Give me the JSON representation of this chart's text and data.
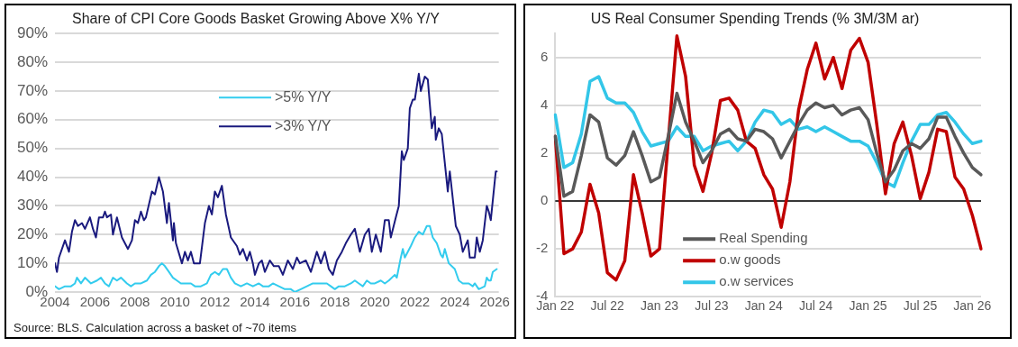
{
  "chart_data": [
    {
      "type": "line",
      "title": "Share of CPI Core Goods Basket Growing Above X% Y/Y",
      "xlim": [
        2004,
        2026.2
      ],
      "xticks": [
        2004,
        2006,
        2008,
        2010,
        2012,
        2014,
        2016,
        2018,
        2020,
        2022,
        2024,
        2026
      ],
      "ylim": [
        0,
        90
      ],
      "yticks": [
        {
          "value": 0,
          "label": "0%"
        },
        {
          "value": 10,
          "label": "10%"
        },
        {
          "value": 20,
          "label": "20%"
        },
        {
          "value": 30,
          "label": "30%"
        },
        {
          "value": 40,
          "label": "40%"
        },
        {
          "value": 50,
          "label": "50%"
        },
        {
          "value": 60,
          "label": "60%"
        },
        {
          "value": 70,
          "label": "70%"
        },
        {
          "value": 80,
          "label": "80%"
        },
        {
          "value": 90,
          "label": "90%"
        }
      ],
      "grid": "y",
      "legend": "top",
      "marker": "none",
      "line_style": "solid",
      "annotations": [
        "Source: BLS. Calculation across a basket of ~70 items"
      ],
      "series": [
        {
          "name": ">5% Y/Y",
          "color": "#33ccee",
          "x": [
            2004.0,
            2004.2,
            2004.5,
            2004.8,
            2005.0,
            2005.1,
            2005.3,
            2005.5,
            2005.8,
            2006.1,
            2006.3,
            2006.5,
            2006.7,
            2006.9,
            2007.1,
            2007.3,
            2007.6,
            2007.8,
            2008.0,
            2008.3,
            2008.6,
            2008.8,
            2009.0,
            2009.2,
            2009.35,
            2009.5,
            2009.7,
            2009.9,
            2010.1,
            2010.3,
            2010.5,
            2010.8,
            2011.0,
            2011.3,
            2011.6,
            2011.8,
            2012.0,
            2012.2,
            2012.4,
            2012.6,
            2012.8,
            2013.0,
            2013.3,
            2013.6,
            2013.9,
            2014.2,
            2014.4,
            2014.7,
            2014.9,
            2015.2,
            2015.5,
            2015.8,
            2016.0,
            2016.3,
            2016.6,
            2016.9,
            2017.2,
            2017.4,
            2017.6,
            2017.8,
            2018.0,
            2018.2,
            2018.5,
            2018.8,
            2019.0,
            2019.2,
            2019.4,
            2019.6,
            2019.8,
            2020.0,
            2020.3,
            2020.5,
            2020.7,
            2021.0,
            2021.1,
            2021.3,
            2021.4,
            2021.5,
            2021.8,
            2022.0,
            2022.2,
            2022.4,
            2022.6,
            2022.75,
            2022.9,
            2023.1,
            2023.3,
            2023.4,
            2023.5,
            2023.7,
            2024.0,
            2024.2,
            2024.4,
            2024.7,
            2024.9,
            2025.0,
            2025.2,
            2025.5,
            2025.6,
            2025.7,
            2025.8,
            2025.9,
            2026.1
          ],
          "values": [
            2,
            1,
            2,
            2,
            3,
            5,
            3,
            5,
            3,
            4,
            5,
            3,
            2,
            5,
            4,
            5,
            3,
            2,
            3,
            3,
            4,
            6,
            7,
            9,
            10,
            9,
            7,
            5,
            4,
            3,
            3,
            3,
            2,
            2,
            3,
            6,
            7,
            6,
            8,
            8,
            5,
            3,
            2,
            3,
            2,
            3,
            2,
            2,
            3,
            2,
            1,
            1,
            0,
            1,
            2,
            3,
            3,
            3,
            3,
            2,
            1,
            2,
            2,
            3,
            4,
            3,
            2,
            4,
            3,
            3,
            4,
            3,
            4,
            6,
            5,
            12,
            15,
            12,
            16,
            19,
            21,
            20,
            23,
            23,
            19,
            17,
            13,
            12,
            15,
            10,
            8,
            4,
            3,
            3,
            2,
            3,
            1,
            2,
            5,
            4,
            4,
            7,
            8
          ]
        },
        {
          "name": ">3% Y/Y",
          "color": "#1a1a7e",
          "x": [
            2004.0,
            2004.1,
            2004.2,
            2004.5,
            2004.7,
            2004.85,
            2005.0,
            2005.15,
            2005.35,
            2005.5,
            2005.75,
            2005.9,
            2006.05,
            2006.2,
            2006.4,
            2006.5,
            2006.6,
            2006.8,
            2006.9,
            2007.1,
            2007.35,
            2007.65,
            2007.85,
            2008.0,
            2008.15,
            2008.3,
            2008.45,
            2008.55,
            2008.85,
            2009.0,
            2009.2,
            2009.4,
            2009.6,
            2009.7,
            2009.9,
            2009.95,
            2010.05,
            2010.35,
            2010.5,
            2010.65,
            2010.8,
            2010.95,
            2011.25,
            2011.5,
            2011.7,
            2011.85,
            2012.0,
            2012.15,
            2012.35,
            2012.55,
            2012.8,
            2013.1,
            2013.25,
            2013.4,
            2013.6,
            2013.75,
            2013.9,
            2014.0,
            2014.2,
            2014.35,
            2014.5,
            2014.75,
            2014.95,
            2015.2,
            2015.4,
            2015.65,
            2015.9,
            2016.1,
            2016.25,
            2016.55,
            2016.8,
            2017.1,
            2017.3,
            2017.5,
            2017.7,
            2017.9,
            2018.1,
            2018.35,
            2018.55,
            2018.8,
            2019.0,
            2019.25,
            2019.5,
            2019.7,
            2019.85,
            2020.05,
            2020.3,
            2020.5,
            2020.7,
            2020.8,
            2021.05,
            2021.2,
            2021.35,
            2021.45,
            2021.65,
            2021.75,
            2021.9,
            2022.0,
            2022.2,
            2022.3,
            2022.5,
            2022.65,
            2022.85,
            2023.0,
            2023.05,
            2023.2,
            2023.35,
            2023.65,
            2023.75,
            2024.05,
            2024.25,
            2024.4,
            2024.65,
            2024.75,
            2025.0,
            2025.1,
            2025.25,
            2025.4,
            2025.6,
            2025.7,
            2025.8,
            2026.05,
            2026.1
          ],
          "values": [
            10,
            7,
            12,
            18,
            14,
            21,
            25,
            23,
            24,
            22,
            26,
            22,
            19,
            26,
            26,
            28,
            26,
            27,
            20,
            26,
            19,
            15,
            18,
            25,
            24,
            28,
            25,
            26,
            35,
            34,
            40,
            35,
            24,
            31,
            18,
            24,
            17,
            10,
            14,
            11,
            14,
            10,
            10,
            24,
            30,
            27,
            35,
            33,
            37,
            27,
            19,
            16,
            13,
            15,
            11,
            14,
            10,
            6,
            10,
            11,
            7,
            11,
            9,
            9,
            6,
            11,
            8,
            12,
            10,
            11,
            7,
            14,
            10,
            14,
            8,
            6,
            11,
            14,
            17,
            20,
            22,
            14,
            20,
            22,
            14,
            20,
            14,
            25,
            25,
            19,
            26,
            30,
            49,
            46,
            50,
            64,
            67,
            67,
            76,
            70,
            75,
            74,
            57,
            61,
            53,
            57,
            55,
            35,
            42,
            23,
            20,
            14,
            18,
            12,
            12,
            19,
            14,
            18,
            30,
            28,
            25,
            42,
            42
          ]
        }
      ]
    },
    {
      "type": "line",
      "title": "US Real Consumer Spending Trends (% 3M/3M ar)",
      "categories": [
        "Jan 22",
        null,
        null,
        null,
        null,
        null,
        "Jul 22",
        null,
        null,
        null,
        null,
        null,
        "Jan 23",
        null,
        null,
        null,
        null,
        null,
        "Jul 23",
        null,
        null,
        null,
        null,
        null,
        "Jan 24",
        null,
        null,
        null,
        null,
        null,
        "Jul 24",
        null,
        null,
        null,
        null,
        null,
        "Jan 25",
        null,
        null,
        null,
        null,
        null,
        "Jul 25",
        null,
        null,
        null,
        null,
        null,
        "Jan 26",
        null
      ],
      "ylim": [
        -4,
        7
      ],
      "yticks": [
        -4,
        -2,
        0,
        2,
        4,
        6
      ],
      "grid": "y",
      "legend": "bottom",
      "marker": "none",
      "line_style": "solid",
      "ref_lines": [
        {
          "axis": "y",
          "value": 0,
          "color": "#000000"
        }
      ],
      "series": [
        {
          "name": "Real Spending",
          "color": "#595959",
          "values": [
            2.7,
            0.2,
            0.4,
            1.9,
            3.6,
            3.3,
            1.8,
            1.5,
            1.9,
            2.9,
            1.9,
            0.8,
            1.0,
            2.7,
            4.5,
            3.3,
            2.5,
            1.6,
            2.1,
            2.8,
            3.0,
            2.6,
            2.5,
            3.0,
            2.9,
            2.6,
            1.8,
            2.5,
            3.2,
            3.8,
            4.1,
            3.9,
            4.0,
            3.6,
            3.8,
            3.9,
            3.4,
            2.0,
            0.8,
            1.3,
            2.1,
            2.4,
            2.2,
            2.6,
            3.5,
            3.5,
            2.7,
            2.0,
            1.4,
            1.1
          ]
        },
        {
          "name": "o.w goods",
          "color": "#c00000",
          "values": [
            2.7,
            -2.2,
            -2.0,
            -1.3,
            0.7,
            -0.5,
            -3.0,
            -3.3,
            -2.5,
            1.1,
            -0.5,
            -2.3,
            -2.0,
            2.5,
            6.9,
            5.2,
            1.5,
            0.4,
            2.0,
            4.2,
            4.3,
            3.8,
            2.5,
            2.2,
            1.1,
            0.5,
            -1.1,
            0.8,
            3.8,
            5.5,
            6.6,
            5.1,
            6.0,
            4.7,
            6.3,
            6.8,
            5.8,
            3.2,
            0.3,
            2.4,
            3.3,
            1.9,
            0.1,
            1.2,
            3.0,
            2.9,
            1.0,
            0.5,
            -0.6,
            -2.0
          ]
        },
        {
          "name": "o.w services",
          "color": "#33c6e8",
          "values": [
            3.6,
            1.4,
            1.6,
            2.8,
            5.0,
            5.2,
            4.3,
            4.1,
            4.1,
            3.7,
            2.9,
            2.3,
            2.4,
            2.5,
            3.1,
            2.7,
            2.7,
            2.1,
            2.3,
            2.4,
            2.5,
            2.1,
            2.5,
            3.3,
            3.8,
            3.7,
            3.2,
            3.4,
            3.0,
            3.1,
            2.9,
            3.1,
            2.9,
            2.7,
            2.5,
            2.5,
            2.3,
            1.6,
            0.8,
            0.6,
            1.6,
            2.5,
            3.2,
            3.2,
            3.6,
            3.7,
            3.3,
            2.8,
            2.4,
            2.5
          ]
        }
      ]
    }
  ]
}
